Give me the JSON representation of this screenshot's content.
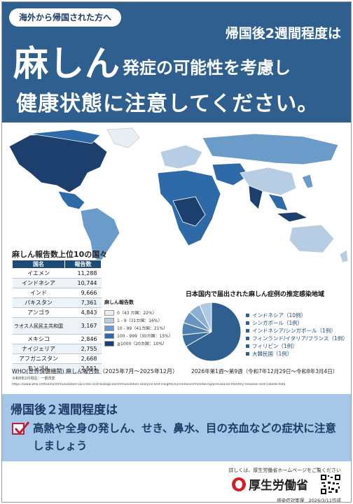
{
  "header": {
    "badge": "海外から帰国された方へ",
    "line1": "帰国後2週間程度は",
    "measles": "麻しん",
    "line2": "発症の可能性を考慮し",
    "line3": "健康状態に注意してください。"
  },
  "table": {
    "title": "麻しん報告数上位10の国々",
    "col_country": "国名",
    "col_count": "報告数",
    "rows": [
      {
        "country": "イエメン",
        "count": "11,288"
      },
      {
        "country": "インドネシア",
        "count": "10,744"
      },
      {
        "country": "インド",
        "count": "9,666"
      },
      {
        "country": "パキスタン",
        "count": "7,361"
      },
      {
        "country": "アンゴラ",
        "count": "4,843"
      },
      {
        "country": "ラオス人民民主共和国",
        "count": "3,167"
      },
      {
        "country": "メキシコ",
        "count": "2,846"
      },
      {
        "country": "ナイジェリア",
        "count": "2,755"
      },
      {
        "country": "アフガニスタン",
        "count": "2,668"
      },
      {
        "country": "モンゴル",
        "count": "2,551"
      }
    ]
  },
  "map_legend": {
    "title": "麻しん報告数",
    "items": [
      {
        "label": "0（43 カ国：22%）",
        "color": "#e8eef5"
      },
      {
        "label": "1 - 9（31カ国：16%）",
        "color": "#b7cde3"
      },
      {
        "label": "10 - 99（41カ国：21%）",
        "color": "#6b9bc9"
      },
      {
        "label": "100 - 999（30カ国：15%）",
        "color": "#2e6aa7"
      },
      {
        "label": "≧1000（20カ国：10%）",
        "color": "#1c3f6e"
      }
    ]
  },
  "chart_data": {
    "type": "pie",
    "title": "日本国内で届出された麻しん症例の推定感染地域",
    "categories": [
      "インドネシア（10例）",
      "シンガポール（1例）",
      "インドネシア/シンガポール（1例）",
      "フィンランド/イタリア/フランス（1例）",
      "フィリピン（1例）",
      "大韓民国（1例）"
    ],
    "values": [
      10,
      1,
      1,
      1,
      1,
      1
    ],
    "colors": [
      "#2e5f8e",
      "#3a6d9e",
      "#4f80ae",
      "#6a95bf",
      "#8aafd1",
      "#b0c9e2"
    ]
  },
  "sources": {
    "who": "WHO(世界保健機関) 麻しん報告数（2025年7月～2025年12月）",
    "japan": "2026年第1週～第9週（令和7年12月29日～令和8年3月4日）",
    "note": "令和8年2月現在：一部改変",
    "url": "https://www.who.int/teams/immunization-vaccines-and-biologicals/immunization-analysis-and-insights/surveillance/monitoring/provisional-monthly-measles-and-rubella-data"
  },
  "panel": {
    "heading": "帰国後２週間程度は",
    "body": "高熱や全身の発しん、せき、鼻水、目の充血などの症状に注意しましょう"
  },
  "footer": {
    "details": "詳しくは、厚生労働省ホームページをご覧ください",
    "ministry": "厚生労働省",
    "created": "感染症対策課　2026/3/11作成"
  }
}
